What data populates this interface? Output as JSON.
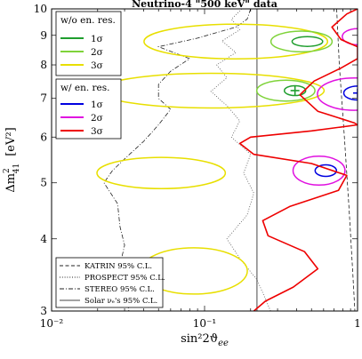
{
  "chart_data": {
    "type": "line",
    "title": "Neutrino-4 \"500 keV\" data",
    "xlabel": "sin²2ϑ",
    "xlabel_sub": "ee",
    "ylabel_prefix": "Δm",
    "ylabel_sup": "2",
    "ylabel_sub": "41",
    "ylabel_unit": "[eV²]",
    "x_scale": "log",
    "y_scale": "log",
    "xlim": [
      0.01,
      1
    ],
    "ylim": [
      3,
      10
    ],
    "x_ticks": [
      {
        "value": 0.01,
        "label": "10⁻²"
      },
      {
        "value": 0.1,
        "label": "10⁻¹"
      },
      {
        "value": 1,
        "label": "1"
      }
    ],
    "y_ticks": [
      {
        "value": 3,
        "label": "3"
      },
      {
        "value": 4,
        "label": "4"
      },
      {
        "value": 5,
        "label": "5"
      },
      {
        "value": 6,
        "label": "6"
      },
      {
        "value": 7,
        "label": "7"
      },
      {
        "value": 8,
        "label": "8"
      },
      {
        "value": 9,
        "label": "9"
      },
      {
        "value": 10,
        "label": "10"
      }
    ],
    "colors": {
      "sigma1_wo": "#1f9e2e",
      "sigma2_wo": "#7fd33a",
      "sigma3_wo": "#e8df00",
      "sigma1_w": "#0000e0",
      "sigma2_w": "#e010e0",
      "sigma3_w": "#ee0000",
      "limits": "#222222",
      "solar": "#666666"
    },
    "legend_wo": {
      "title": "w/o en. res.",
      "entries": [
        "1σ",
        "2σ",
        "3σ"
      ]
    },
    "legend_w": {
      "title": "w/ en. res.",
      "entries": [
        "1σ",
        "2σ",
        "3σ"
      ]
    },
    "legend_limits": [
      {
        "label": "KATRIN 95% C.L.",
        "style": "dashed"
      },
      {
        "label": "PROSPECT 95% C.L.",
        "style": "dotted"
      },
      {
        "label": "STEREO 95% C.L.",
        "style": "dashdot"
      },
      {
        "label": "Solar νₑ's 95% C.L.",
        "style": "solid"
      }
    ],
    "ellipses": [
      {
        "series": "w/o en. res.",
        "level": "1σ",
        "cx": 0.47,
        "cy": 8.78,
        "rx_dec": 0.1,
        "ry_dec": 0.0085
      },
      {
        "series": "w/o en. res.",
        "level": "1σ",
        "cx": 0.39,
        "cy": 7.22,
        "rx_dec": 0.07,
        "ry_dec": 0.0085
      },
      {
        "series": "w/o en. res.",
        "level": "2σ",
        "cx": 0.43,
        "cy": 8.78,
        "rx_dec": 0.2,
        "ry_dec": 0.018
      },
      {
        "series": "w/o en. res.",
        "level": "2σ",
        "cx": 0.34,
        "cy": 7.22,
        "rx_dec": 0.19,
        "ry_dec": 0.018
      },
      {
        "series": "w/o en. res.",
        "level": "3σ",
        "cx": 0.16,
        "cy": 8.78,
        "rx_dec": 0.6,
        "ry_dec": 0.03
      },
      {
        "series": "w/o en. res.",
        "level": "3σ",
        "cx": 0.11,
        "cy": 7.22,
        "rx_dec": 0.74,
        "ry_dec": 0.03
      },
      {
        "series": "w/o en. res.",
        "level": "3σ",
        "cx": 0.052,
        "cy": 5.2,
        "rx_dec": 0.42,
        "ry_dec": 0.027
      },
      {
        "series": "w/o en. res.",
        "level": "3σ",
        "cx": 0.085,
        "cy": 3.52,
        "rx_dec": 0.35,
        "ry_dec": 0.04
      },
      {
        "series": "w/ en. res.",
        "level": "1σ",
        "cx": 0.62,
        "cy": 5.25,
        "rx_dec": 0.07,
        "ry_dec": 0.01
      },
      {
        "series": "w/ en. res.",
        "level": "1σ",
        "cx": 1.0,
        "cy": 7.15,
        "rx_dec": 0.09,
        "ry_dec": 0.012
      },
      {
        "series": "w/ en. res.",
        "level": "2σ",
        "cx": 0.56,
        "cy": 5.25,
        "rx_dec": 0.17,
        "ry_dec": 0.025
      },
      {
        "series": "w/ en. res.",
        "level": "2σ",
        "cx": 0.95,
        "cy": 7.12,
        "rx_dec": 0.24,
        "ry_dec": 0.028
      },
      {
        "series": "w/ en. res.",
        "level": "2σ",
        "cx": 1.0,
        "cy": 8.95,
        "rx_dec": 0.1,
        "ry_dec": 0.014
      }
    ],
    "best_fit_markers": [
      {
        "series": "w/o en. res.",
        "x": 0.39,
        "y": 7.22,
        "color": "#1f9e2e"
      },
      {
        "series": "w/ en. res.",
        "x": 1.0,
        "y": 7.15,
        "color": "#0000e0"
      }
    ],
    "red_boundary": [
      [
        1.0,
        10
      ],
      [
        0.85,
        9.8
      ],
      [
        0.68,
        9.3
      ],
      [
        0.78,
        8.85
      ],
      [
        1.0,
        8.6
      ],
      [
        1.0,
        8.2
      ],
      [
        0.78,
        7.9
      ],
      [
        0.52,
        7.5
      ],
      [
        0.42,
        7.1
      ],
      [
        0.55,
        6.65
      ],
      [
        0.95,
        6.35
      ],
      [
        1.0,
        6.3
      ],
      [
        0.5,
        6.15
      ],
      [
        0.2,
        6.0
      ],
      [
        0.17,
        5.85
      ],
      [
        0.21,
        5.6
      ],
      [
        0.5,
        5.4
      ],
      [
        0.85,
        5.15
      ],
      [
        0.75,
        4.85
      ],
      [
        0.36,
        4.55
      ],
      [
        0.24,
        4.3
      ],
      [
        0.26,
        4.05
      ],
      [
        0.45,
        3.8
      ],
      [
        0.55,
        3.55
      ],
      [
        0.38,
        3.3
      ],
      [
        0.25,
        3.12
      ],
      [
        0.21,
        3
      ]
    ],
    "katrin_limit": [
      [
        0.73,
        10
      ],
      [
        0.76,
        8
      ],
      [
        0.82,
        6
      ],
      [
        0.88,
        4.5
      ],
      [
        0.93,
        3.5
      ],
      [
        0.96,
        3
      ]
    ],
    "prospect_limit": [
      [
        0.175,
        10
      ],
      [
        0.15,
        9.6
      ],
      [
        0.17,
        9.2
      ],
      [
        0.13,
        8.8
      ],
      [
        0.16,
        8.4
      ],
      [
        0.12,
        8.0
      ],
      [
        0.14,
        7.6
      ],
      [
        0.11,
        7.2
      ],
      [
        0.14,
        6.8
      ],
      [
        0.17,
        6.4
      ],
      [
        0.15,
        6.0
      ],
      [
        0.2,
        5.6
      ],
      [
        0.18,
        5.2
      ],
      [
        0.21,
        4.8
      ],
      [
        0.19,
        4.4
      ],
      [
        0.14,
        4.0
      ],
      [
        0.17,
        3.7
      ],
      [
        0.22,
        3.4
      ],
      [
        0.25,
        3.15
      ],
      [
        0.27,
        3
      ]
    ],
    "stereo_limit": [
      [
        0.2,
        10
      ],
      [
        0.19,
        9.6
      ],
      [
        0.16,
        9.3
      ],
      [
        0.09,
        8.9
      ],
      [
        0.05,
        8.6
      ],
      [
        0.08,
        8.2
      ],
      [
        0.06,
        7.8
      ],
      [
        0.05,
        7.4
      ],
      [
        0.05,
        7.0
      ],
      [
        0.06,
        6.7
      ],
      [
        0.05,
        6.3
      ],
      [
        0.04,
        5.9
      ],
      [
        0.03,
        5.5
      ],
      [
        0.025,
        5.25
      ],
      [
        0.022,
        5.0
      ],
      [
        0.027,
        4.6
      ],
      [
        0.028,
        4.2
      ],
      [
        0.03,
        3.9
      ],
      [
        0.028,
        3.6
      ],
      [
        0.03,
        3.3
      ],
      [
        0.032,
        3
      ]
    ],
    "solar_limit_x": 0.22
  }
}
